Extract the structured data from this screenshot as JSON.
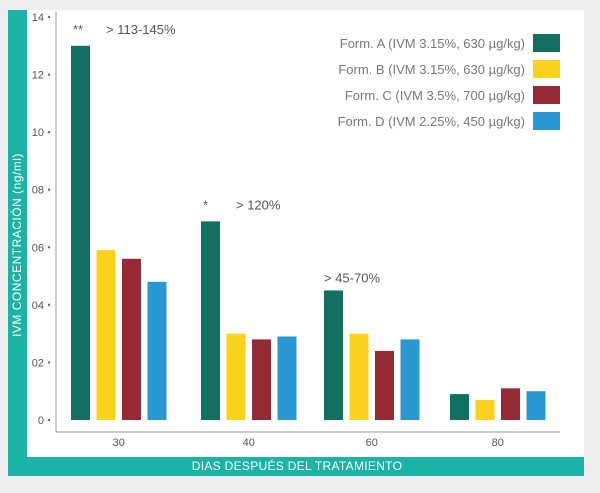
{
  "chart_data": {
    "type": "bar",
    "title": "",
    "xlabel": "DIAS DESPUÉS DEL TRATAMIENTO",
    "ylabel": "IVM CONCENTRACIÓN (ng/ml)",
    "categories": [
      "30",
      "40",
      "60",
      "80"
    ],
    "y_ticks": [
      "0",
      "02",
      "04",
      "06",
      "08",
      "10",
      "12",
      "14"
    ],
    "ylim": [
      0,
      14
    ],
    "grid": false,
    "legend_position": "top-right",
    "series": [
      {
        "name": "Form. A (IVM 3.15%, 630 µg/kg)",
        "color": "#11705f",
        "values": [
          13.0,
          6.9,
          4.5,
          0.9
        ]
      },
      {
        "name": "Form. B (IVM 3.15%, 630 µg/kg)",
        "color": "#fad21c",
        "values": [
          5.9,
          3.0,
          3.0,
          0.7
        ]
      },
      {
        "name": "Form. C (IVM 3.5%, 700 µg/kg)",
        "color": "#962a34",
        "values": [
          5.6,
          2.8,
          2.4,
          1.1
        ]
      },
      {
        "name": "Form. D (IVM 2.25%, 450 µg/kg)",
        "color": "#2897d3",
        "values": [
          4.8,
          2.9,
          2.8,
          1.0
        ]
      }
    ],
    "annotations": [
      {
        "category": "30",
        "star": "**",
        "text": "> 113-145%"
      },
      {
        "category": "40",
        "star": "*",
        "text": "> 120%"
      },
      {
        "category": "60",
        "star": "",
        "text": "> 45-70%"
      }
    ],
    "accent_color": "#1bb3a5"
  }
}
